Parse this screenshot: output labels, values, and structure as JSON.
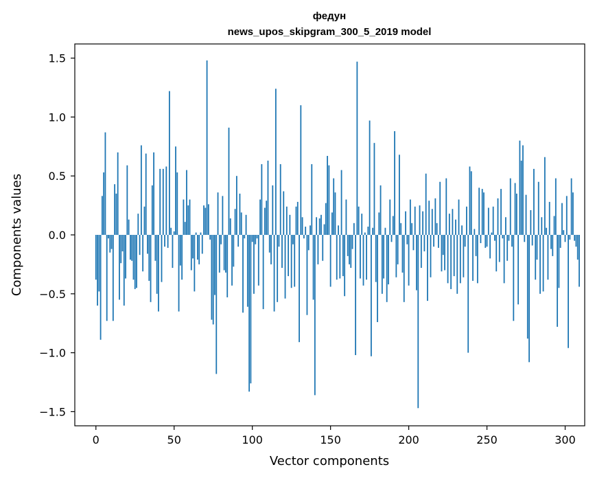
{
  "chart_data": {
    "type": "bar",
    "title_line1": "федун",
    "title_line2": "news_upos_skipgram_300_5_2019 model",
    "xlabel": "Vector components",
    "ylabel": "Components values",
    "xlim": [
      -13.5,
      312.5
    ],
    "ylim": [
      -1.62,
      1.62
    ],
    "xticks": [
      0,
      50,
      100,
      150,
      200,
      250,
      300
    ],
    "xtick_labels": [
      "0",
      "50",
      "100",
      "150",
      "200",
      "250",
      "300"
    ],
    "yticks": [
      -1.5,
      -1.0,
      -0.5,
      0.0,
      0.5,
      1.0,
      1.5
    ],
    "ytick_labels": [
      "−1.5",
      "−1.0",
      "−0.5",
      "0.0",
      "0.5",
      "1.0",
      "1.5"
    ],
    "bar_color": "#1f77b4",
    "values": [
      -0.38,
      -0.6,
      -0.48,
      -0.89,
      0.33,
      0.53,
      0.87,
      -0.73,
      -0.03,
      -0.15,
      -0.12,
      -0.73,
      0.43,
      0.35,
      0.7,
      -0.55,
      -0.24,
      -0.14,
      -0.6,
      -0.37,
      0.59,
      0.13,
      -0.21,
      -0.22,
      -0.38,
      -0.46,
      -0.45,
      0.18,
      -0.17,
      0.76,
      -0.31,
      0.24,
      0.69,
      -0.16,
      -0.39,
      -0.57,
      0.42,
      0.7,
      -0.22,
      -0.5,
      -0.65,
      0.56,
      -0.4,
      0.56,
      -0.1,
      0.58,
      -0.11,
      1.22,
      0.06,
      -0.28,
      0.03,
      0.75,
      0.53,
      -0.65,
      -0.26,
      -0.38,
      0.3,
      0.11,
      0.55,
      0.25,
      0.3,
      -0.3,
      -0.2,
      -0.48,
      0.02,
      -0.21,
      -0.25,
      0.02,
      -0.16,
      0.25,
      0.23,
      1.48,
      0.26,
      -0.04,
      -0.72,
      -0.76,
      -0.51,
      -1.18,
      0.36,
      -0.32,
      -0.08,
      0.33,
      -0.3,
      -0.32,
      -0.53,
      0.91,
      0.14,
      -0.43,
      -0.27,
      0.22,
      0.5,
      -0.1,
      0.35,
      0.19,
      -0.66,
      -0.03,
      0.17,
      -0.61,
      -1.33,
      -1.26,
      -0.06,
      -0.5,
      -0.08,
      -0.03,
      -0.43,
      0.3,
      0.6,
      -0.63,
      0.23,
      0.29,
      0.63,
      -0.15,
      -0.25,
      0.42,
      -0.65,
      1.24,
      -0.57,
      -0.1,
      0.6,
      -0.28,
      0.37,
      -0.54,
      0.24,
      -0.35,
      0.17,
      -0.45,
      -0.08,
      -0.44,
      0.24,
      0.28,
      -0.91,
      1.1,
      0.15,
      -0.03,
      0.07,
      -0.68,
      -0.13,
      0.08,
      0.6,
      -0.55,
      -1.36,
      0.15,
      -0.25,
      0.14,
      0.17,
      -0.22,
      0.09,
      0.27,
      0.67,
      0.59,
      -0.44,
      0.19,
      0.48,
      0.36,
      -0.38,
      0.08,
      -0.37,
      0.55,
      -0.35,
      -0.52,
      0.3,
      -0.18,
      -0.25,
      -0.28,
      -0.12,
      0.1,
      -1.02,
      1.47,
      0.24,
      -0.37,
      0.18,
      -0.43,
      0.02,
      -0.38,
      0.07,
      0.97,
      -1.03,
      0.06,
      0.78,
      -0.4,
      -0.74,
      0.19,
      0.42,
      -0.5,
      -0.37,
      0.06,
      -0.57,
      -0.42,
      0.3,
      -0.06,
      0.16,
      0.88,
      -0.36,
      -0.25,
      0.68,
      0.1,
      -0.32,
      -0.57,
      0.2,
      -0.08,
      -0.43,
      0.3,
      0.1,
      -0.13,
      0.24,
      -0.47,
      -1.47,
      0.25,
      -0.28,
      0.2,
      -0.14,
      0.52,
      -0.56,
      0.29,
      -0.36,
      0.22,
      -0.1,
      0.31,
      0.1,
      -0.11,
      0.45,
      -0.31,
      -0.17,
      -0.3,
      0.48,
      -0.41,
      0.18,
      -0.46,
      0.22,
      -0.35,
      0.13,
      -0.5,
      0.3,
      -0.41,
      0.08,
      -0.36,
      -0.1,
      0.24,
      -1.0,
      0.58,
      0.54,
      -0.39,
      0.05,
      -0.18,
      -0.41,
      0.4,
      -0.07,
      0.39,
      0.36,
      -0.11,
      -0.1,
      0.23,
      -0.2,
      0.02,
      0.24,
      -0.05,
      -0.31,
      0.31,
      -0.23,
      0.39,
      -0.03,
      -0.41,
      0.15,
      -0.22,
      -0.05,
      0.48,
      -0.1,
      -0.73,
      0.44,
      0.35,
      -0.59,
      0.8,
      0.63,
      0.76,
      -0.06,
      0.34,
      -0.88,
      -1.08,
      0.21,
      -0.09,
      0.56,
      -0.38,
      -0.21,
      0.45,
      -0.5,
      0.15,
      -0.48,
      0.66,
      0.06,
      -0.38,
      0.28,
      -0.12,
      -0.18,
      0.16,
      0.48,
      -0.78,
      -0.45,
      -0.11,
      0.27,
      0.04,
      -0.06,
      0.33,
      -0.96,
      -0.04,
      0.48,
      0.36,
      -0.05,
      -0.1,
      -0.21,
      -0.44
    ]
  }
}
